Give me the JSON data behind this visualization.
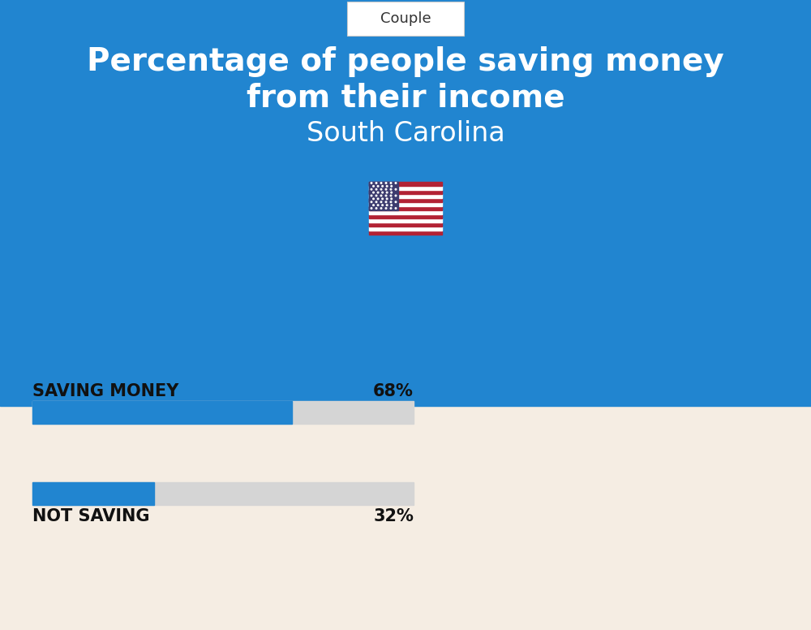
{
  "title_line1": "Percentage of people saving money",
  "title_line2": "from their income",
  "subtitle": "South Carolina",
  "tab_label": "Couple",
  "saving_label": "SAVING MONEY",
  "saving_pct": 68,
  "saving_pct_label": "68%",
  "not_saving_label": "NOT SAVING",
  "not_saving_pct": 32,
  "not_saving_pct_label": "32%",
  "blue_color": "#2185D0",
  "bar_blue": "#2185D0",
  "bar_gray": "#D5D5D5",
  "bg_top": "#2185D0",
  "bg_bottom": "#F5EDE3",
  "title_color": "#FFFFFF",
  "subtitle_color": "#FFFFFF",
  "label_color": "#111111",
  "tab_bg": "#FFFFFF",
  "tab_text_color": "#333333",
  "fig_width": 10.0,
  "fig_height": 7.76
}
